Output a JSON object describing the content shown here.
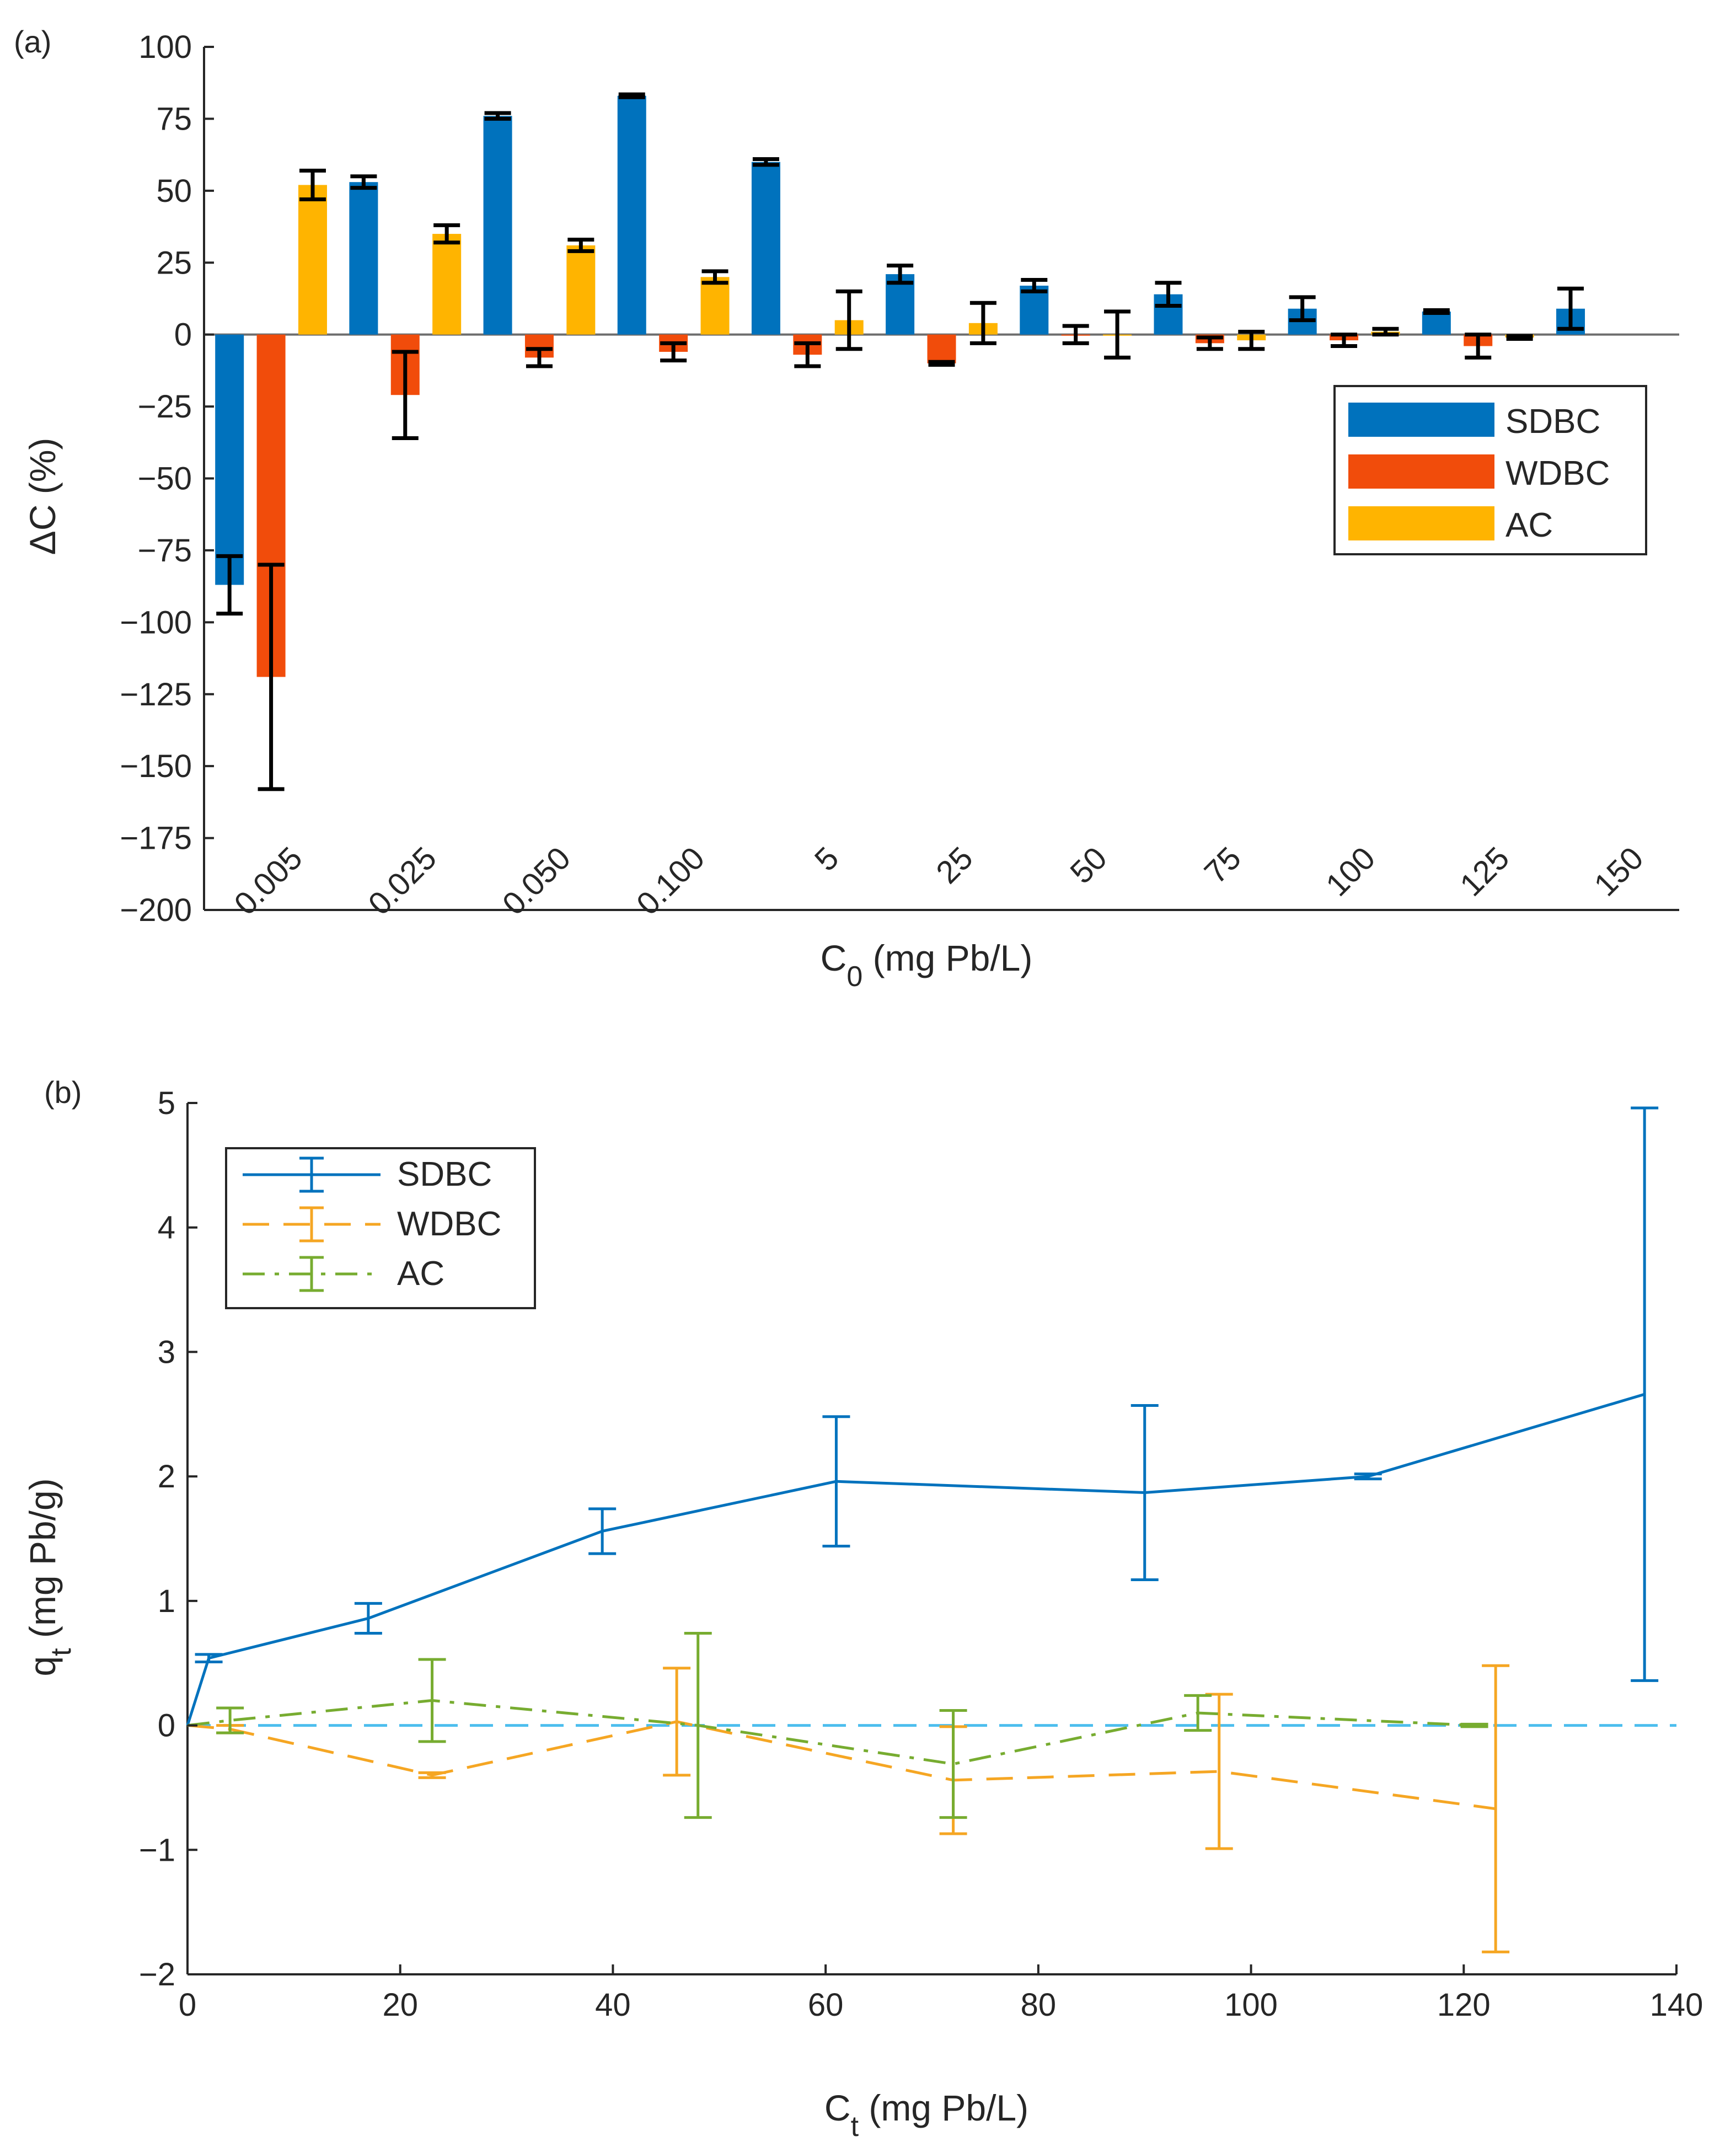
{
  "figure": {
    "panel_labels": [
      "(a)",
      "(b)"
    ]
  },
  "chart_data": [
    {
      "type": "bar",
      "panel": "(a)",
      "title": "",
      "xlabel": "C",
      "xlabel_sub": "0",
      "xlabel_rest": " (mg Pb/L)",
      "ylabel": "ΔC (%)",
      "ylim": [
        -200,
        100
      ],
      "yticks": [
        100,
        75,
        50,
        25,
        0,
        -25,
        -50,
        -75,
        -100,
        -125,
        -150,
        -175,
        -200
      ],
      "ytick_labels": [
        "100",
        "75",
        "50",
        "25",
        "0",
        "−25",
        "−50",
        "−75",
        "−100",
        "−125",
        "−150",
        "−175",
        "−200"
      ],
      "categories": [
        "0.005",
        "0.025",
        "0.050",
        "0.100",
        "5",
        "25",
        "50",
        "75",
        "100",
        "125",
        "150"
      ],
      "legend_position": "right",
      "series": [
        {
          "name": "SDBC",
          "color": "#0072BD",
          "values": [
            -87,
            53,
            76,
            83,
            60,
            21,
            17,
            14,
            9,
            8,
            9
          ],
          "errors": [
            10,
            2,
            1,
            0.5,
            1,
            3,
            2,
            4,
            4,
            0.5,
            7
          ]
        },
        {
          "name": "WDBC",
          "color": "#F14C0B",
          "values": [
            -119,
            -21,
            -8,
            -6,
            -7,
            -10,
            0,
            -3,
            -2,
            -4,
            null
          ],
          "errors": [
            39,
            15,
            3,
            3,
            4,
            0.5,
            3,
            2,
            2,
            4,
            null
          ]
        },
        {
          "name": "AC",
          "color": "#FFB400",
          "values": [
            52,
            35,
            31,
            20,
            5,
            4,
            0,
            -2,
            1,
            -1,
            null
          ],
          "errors": [
            5,
            3,
            2,
            2,
            10,
            7,
            8,
            3,
            1,
            0.5,
            null
          ]
        }
      ]
    },
    {
      "type": "line",
      "panel": "(b)",
      "title": "",
      "xlabel": "C",
      "xlabel_sub": "t",
      "xlabel_rest": " (mg Pb/L)",
      "ylabel": "q",
      "ylabel_sub": "t",
      "ylabel_rest": " (mg Pb/g)",
      "xlim": [
        0,
        140
      ],
      "ylim": [
        -2,
        5
      ],
      "xticks": [
        0,
        20,
        40,
        60,
        80,
        100,
        120,
        140
      ],
      "yticks": [
        5,
        4,
        3,
        2,
        1,
        0,
        -1,
        -2
      ],
      "ytick_labels": [
        "5",
        "4",
        "3",
        "2",
        "1",
        "0",
        "−1",
        "−2"
      ],
      "reference_line": {
        "y": 0,
        "color": "#4DBEEE"
      },
      "legend_position": "top-left",
      "series": [
        {
          "name": "SDBC",
          "color": "#0072BD",
          "style": "solid",
          "x": [
            0,
            2,
            17,
            39,
            61,
            90,
            111,
            137
          ],
          "y": [
            0,
            0.54,
            0.86,
            1.56,
            1.96,
            1.87,
            2.0,
            2.66
          ],
          "err": [
            0,
            0.03,
            0.12,
            0.18,
            0.52,
            0.7,
            0.02,
            2.3
          ]
        },
        {
          "name": "WDBC",
          "color": "#F5A623",
          "style": "dashed",
          "x": [
            0,
            4,
            23,
            46,
            72,
            97,
            123
          ],
          "y": [
            0,
            -0.03,
            -0.4,
            0.03,
            -0.44,
            -0.37,
            -0.67
          ],
          "err": [
            0,
            0.03,
            0.02,
            0.43,
            0.43,
            0.62,
            1.15
          ]
        },
        {
          "name": "AC",
          "color": "#77AC30",
          "style": "dashdot",
          "x": [
            0,
            4,
            23,
            48,
            72,
            95,
            121
          ],
          "y": [
            0,
            0.04,
            0.2,
            0.0,
            -0.31,
            0.1,
            0.0
          ],
          "err": [
            0,
            0.1,
            0.33,
            0.74,
            0.43,
            0.14,
            0.01
          ]
        }
      ]
    }
  ]
}
